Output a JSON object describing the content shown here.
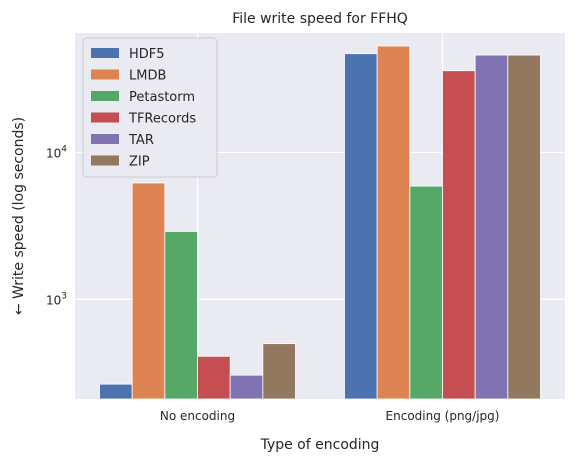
{
  "chart_data": {
    "type": "bar",
    "title": "File write speed for FFHQ",
    "xlabel": "Type of encoding",
    "ylabel": "← Write speed (log seconds)",
    "yscale": "log",
    "ylim": [
      210,
      65000
    ],
    "yticks": [
      {
        "value": 1000,
        "base": "10",
        "exp": "3"
      },
      {
        "value": 10000,
        "base": "10",
        "exp": "4"
      }
    ],
    "categories": [
      "No encoding",
      "Encoding (png/jpg)"
    ],
    "series": [
      {
        "name": "HDF5",
        "color": "#4c72b0",
        "values": [
          265,
          47000
        ]
      },
      {
        "name": "LMDB",
        "color": "#dd8452",
        "values": [
          6200,
          53000
        ]
      },
      {
        "name": "Petastorm",
        "color": "#55a868",
        "values": [
          2900,
          5900
        ]
      },
      {
        "name": "TFRecords",
        "color": "#c44e52",
        "values": [
          410,
          36000
        ]
      },
      {
        "name": "TAR",
        "color": "#8172b3",
        "values": [
          305,
          46000
        ]
      },
      {
        "name": "ZIP",
        "color": "#937860",
        "values": [
          500,
          46000
        ]
      }
    ],
    "grid": true,
    "legend_position": "top-left",
    "background": "#eaeaf2"
  }
}
